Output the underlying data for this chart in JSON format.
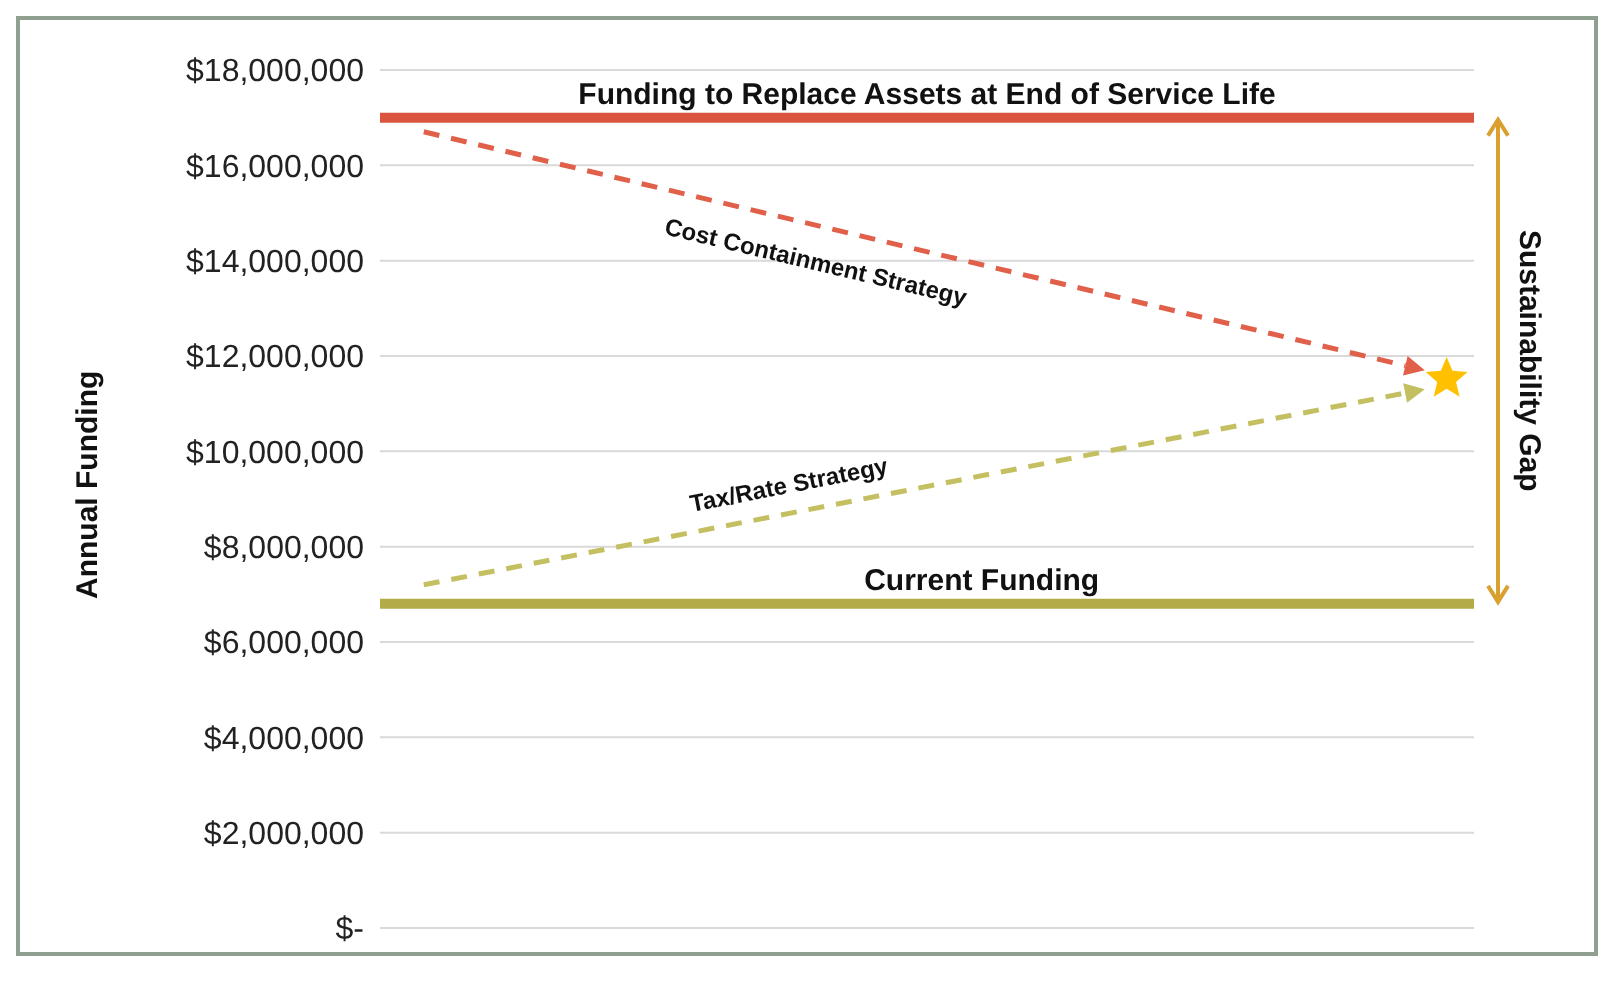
{
  "chart_data": {
    "type": "line",
    "ylabel": "Annual Funding",
    "categories": [
      null,
      null,
      null,
      null,
      null,
      null,
      null,
      null,
      null,
      null,
      null,
      null,
      null,
      null,
      null,
      null,
      null,
      null,
      null,
      null
    ],
    "series": [
      {
        "name": "Funding to Replace Assets at End of Service Life",
        "color": "#d9553f",
        "values": [
          17000000,
          17000000,
          17000000,
          17000000,
          17000000,
          17000000,
          17000000,
          17000000,
          17000000,
          17000000,
          17000000,
          17000000,
          17000000,
          17000000,
          17000000,
          17000000,
          17000000,
          17000000,
          17000000,
          17000000
        ]
      },
      {
        "name": "Current Funding",
        "color": "#b3ab48",
        "values": [
          6800000,
          6800000,
          6800000,
          6800000,
          6800000,
          6800000,
          6800000,
          6800000,
          6800000,
          6800000,
          6800000,
          6800000,
          6800000,
          6800000,
          6800000,
          6800000,
          6800000,
          6800000,
          6800000,
          6800000
        ]
      }
    ],
    "ylim": [
      0,
      18000000
    ],
    "yticks": [
      {
        "value": 0,
        "label": "$-"
      },
      {
        "value": 2000000,
        "label": "$2,000,000"
      },
      {
        "value": 4000000,
        "label": "$4,000,000"
      },
      {
        "value": 6000000,
        "label": "$6,000,000"
      },
      {
        "value": 8000000,
        "label": "$8,000,000"
      },
      {
        "value": 10000000,
        "label": "$10,000,000"
      },
      {
        "value": 12000000,
        "label": "$12,000,000"
      },
      {
        "value": 14000000,
        "label": "$14,000,000"
      },
      {
        "value": 16000000,
        "label": "$16,000,000"
      },
      {
        "value": 18000000,
        "label": "$18,000,000"
      }
    ],
    "grid": "y",
    "tick_labels": "y",
    "line_style": "solid",
    "annotations": [
      "Cost Containment Strategy",
      "Tax/Rate Strategy",
      "Sustainability Gap"
    ]
  }
}
